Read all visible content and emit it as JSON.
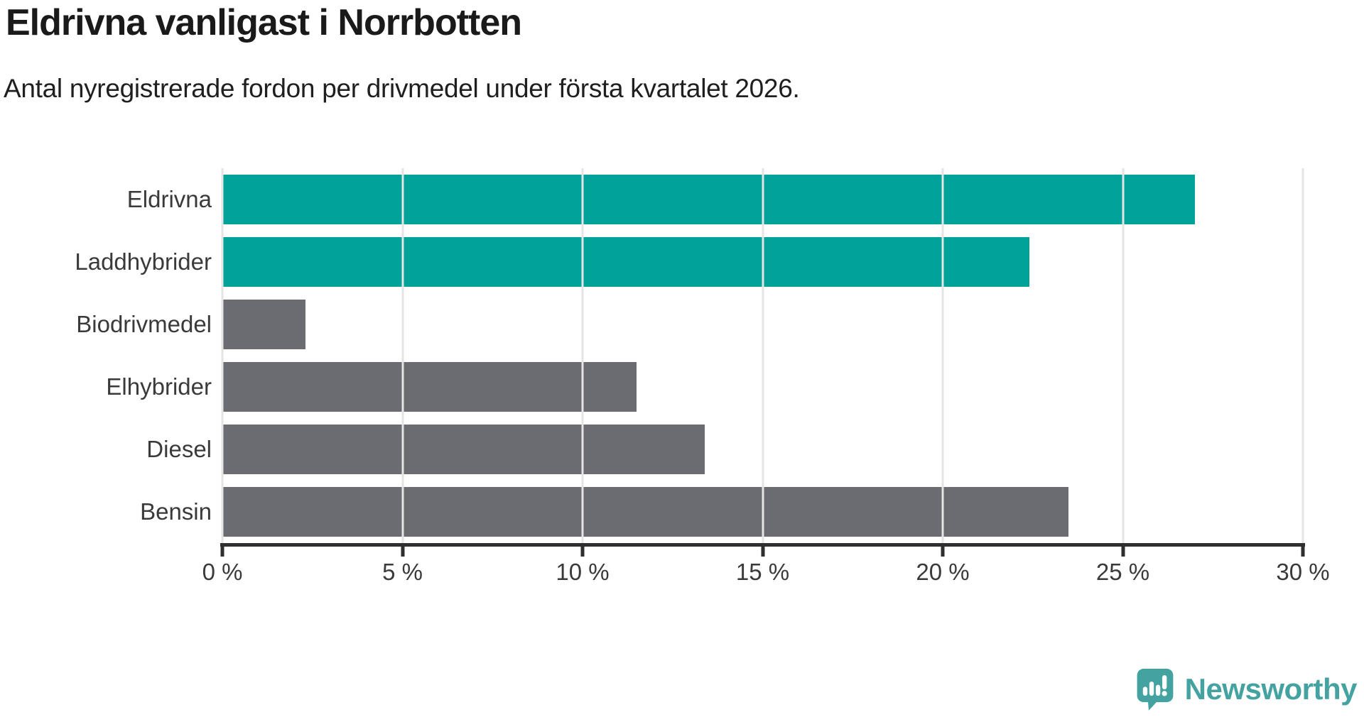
{
  "header": {
    "title": "Eldrivna vanligast i Norrbotten",
    "subtitle": "Antal nyregistrerade fordon per drivmedel under första kvartalet 2026."
  },
  "chart_data": {
    "type": "bar",
    "orientation": "horizontal",
    "title": "Eldrivna vanligast i Norrbotten",
    "xlabel": "",
    "ylabel": "",
    "unit": "%",
    "categories": [
      "Eldrivna",
      "Laddhybrider",
      "Biodrivmedel",
      "Elhybrider",
      "Diesel",
      "Bensin"
    ],
    "values": [
      27.0,
      22.4,
      2.3,
      11.5,
      13.4,
      23.5
    ],
    "bar_colors": [
      "#00a29a",
      "#00a29a",
      "#6b6b72",
      "#6b6b72",
      "#6b6b72",
      "#6b6b72"
    ],
    "highlight_color": "#00a29a",
    "default_color": "#6b6b72",
    "xlim": [
      0,
      30
    ],
    "x_ticks": [
      0,
      5,
      10,
      15,
      20,
      25,
      30
    ],
    "x_tick_labels": [
      "0 %",
      "5 %",
      "10 %",
      "15 %",
      "20 %",
      "25 %",
      "30 %"
    ],
    "grid": true,
    "gridline_color": "#e4e4e4",
    "axis_color": "#2f2f2f",
    "legend_position": "none"
  },
  "footer": {
    "brand": "Newsworthy",
    "brand_color": "#44a3a1"
  }
}
